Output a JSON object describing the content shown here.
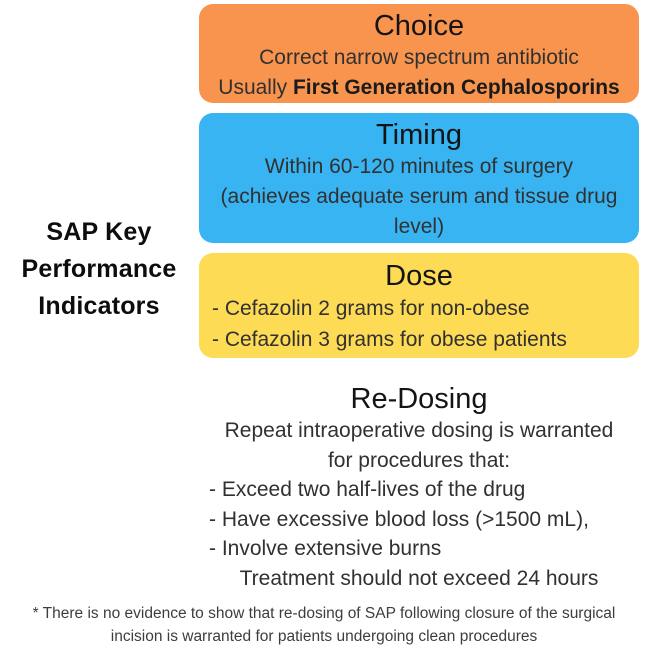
{
  "page": {
    "background": "#ffffff"
  },
  "left_title": {
    "full_text": "SAP Key Performance Indicators",
    "lines": [
      "SAP Key",
      "Performance",
      "Indicators"
    ]
  },
  "cards": {
    "choice": {
      "title": "Choice",
      "bg": "#F8944E",
      "line1": "Correct narrow spectrum antibiotic",
      "line2_normal": "Usually",
      "line2_bold": "First Generation Cephalosporins"
    },
    "timing": {
      "title": "Timing",
      "bg": "#38B4F2",
      "line1": "Within 60-120 minutes of surgery",
      "line2": "(achieves adequate serum and tissue drug",
      "line3": "level)"
    },
    "dose": {
      "title": "Dose",
      "bg": "#FDDB55",
      "bullet1": "- Cefazolin 2 grams for non-obese",
      "bullet2": "- Cefazolin 3 grams for obese patients"
    },
    "redosing": {
      "title": "Re-Dosing",
      "intro_line1": "Repeat intraoperative dosing is warranted",
      "intro_line2": "for procedures that:",
      "bullet1": "- Exceed two half-lives of the drug",
      "bullet2": "- Have excessive blood loss (>1500 mL),",
      "bullet3": "- Involve extensive burns",
      "outro": "Treatment should not exceed 24 hours"
    }
  },
  "footnote": {
    "line1": "* There is no evidence to show that re-dosing of SAP following closure of the surgical",
    "line2": "incision is warranted for patients undergoing clean  procedures"
  }
}
